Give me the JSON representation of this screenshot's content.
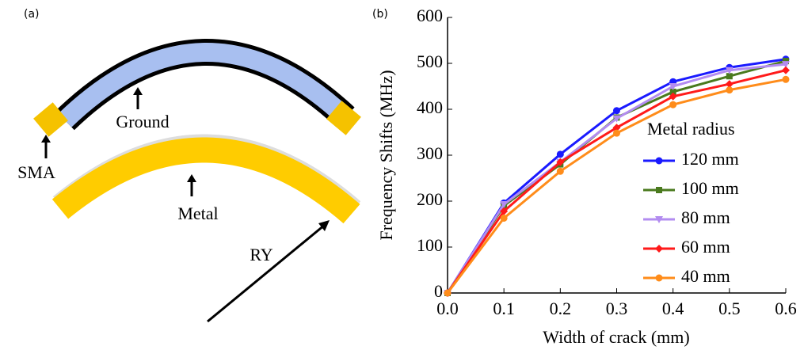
{
  "panel_a": {
    "label": "(a)",
    "ground": "Ground",
    "sma": "SMA",
    "metal": "Metal",
    "radius": "RY"
  },
  "chart_data": {
    "type": "line",
    "panel_label": "(b)",
    "x_label": "Width of crack (mm)",
    "y_label": "Frequency Shifts (MHz)",
    "x": [
      0,
      0.1,
      0.2,
      0.3,
      0.4,
      0.5,
      0.6
    ],
    "xlim": [
      0,
      0.6
    ],
    "xticks": [
      {
        "value": 0,
        "label": "0.0"
      },
      0.1,
      0.2,
      0.3,
      0.4,
      0.5,
      0.6
    ],
    "ylim": [
      0,
      600
    ],
    "yticks": [
      0,
      100,
      200,
      300,
      400,
      500,
      600
    ],
    "legend_title": "Metal radius",
    "legend": "right",
    "series": [
      {
        "name": "120 mm",
        "color": "#1a1aff",
        "marker": "circle",
        "values": [
          0,
          196,
          302,
          397,
          460,
          491,
          509
        ]
      },
      {
        "name": "100 mm",
        "color": "#4a7a1e",
        "marker": "square",
        "values": [
          0,
          190,
          280,
          382,
          438,
          472,
          505
        ]
      },
      {
        "name": "80 mm",
        "color": "#b38cf0",
        "marker": "triangle-down",
        "values": [
          0,
          193,
          285,
          380,
          450,
          485,
          498
        ]
      },
      {
        "name": "60 mm",
        "color": "#ff1a1a",
        "marker": "diamond",
        "values": [
          0,
          178,
          285,
          360,
          428,
          455,
          485
        ]
      },
      {
        "name": "40 mm",
        "color": "#ff8c1a",
        "marker": "circle",
        "values": [
          0,
          163,
          265,
          348,
          410,
          442,
          465
        ]
      }
    ]
  }
}
